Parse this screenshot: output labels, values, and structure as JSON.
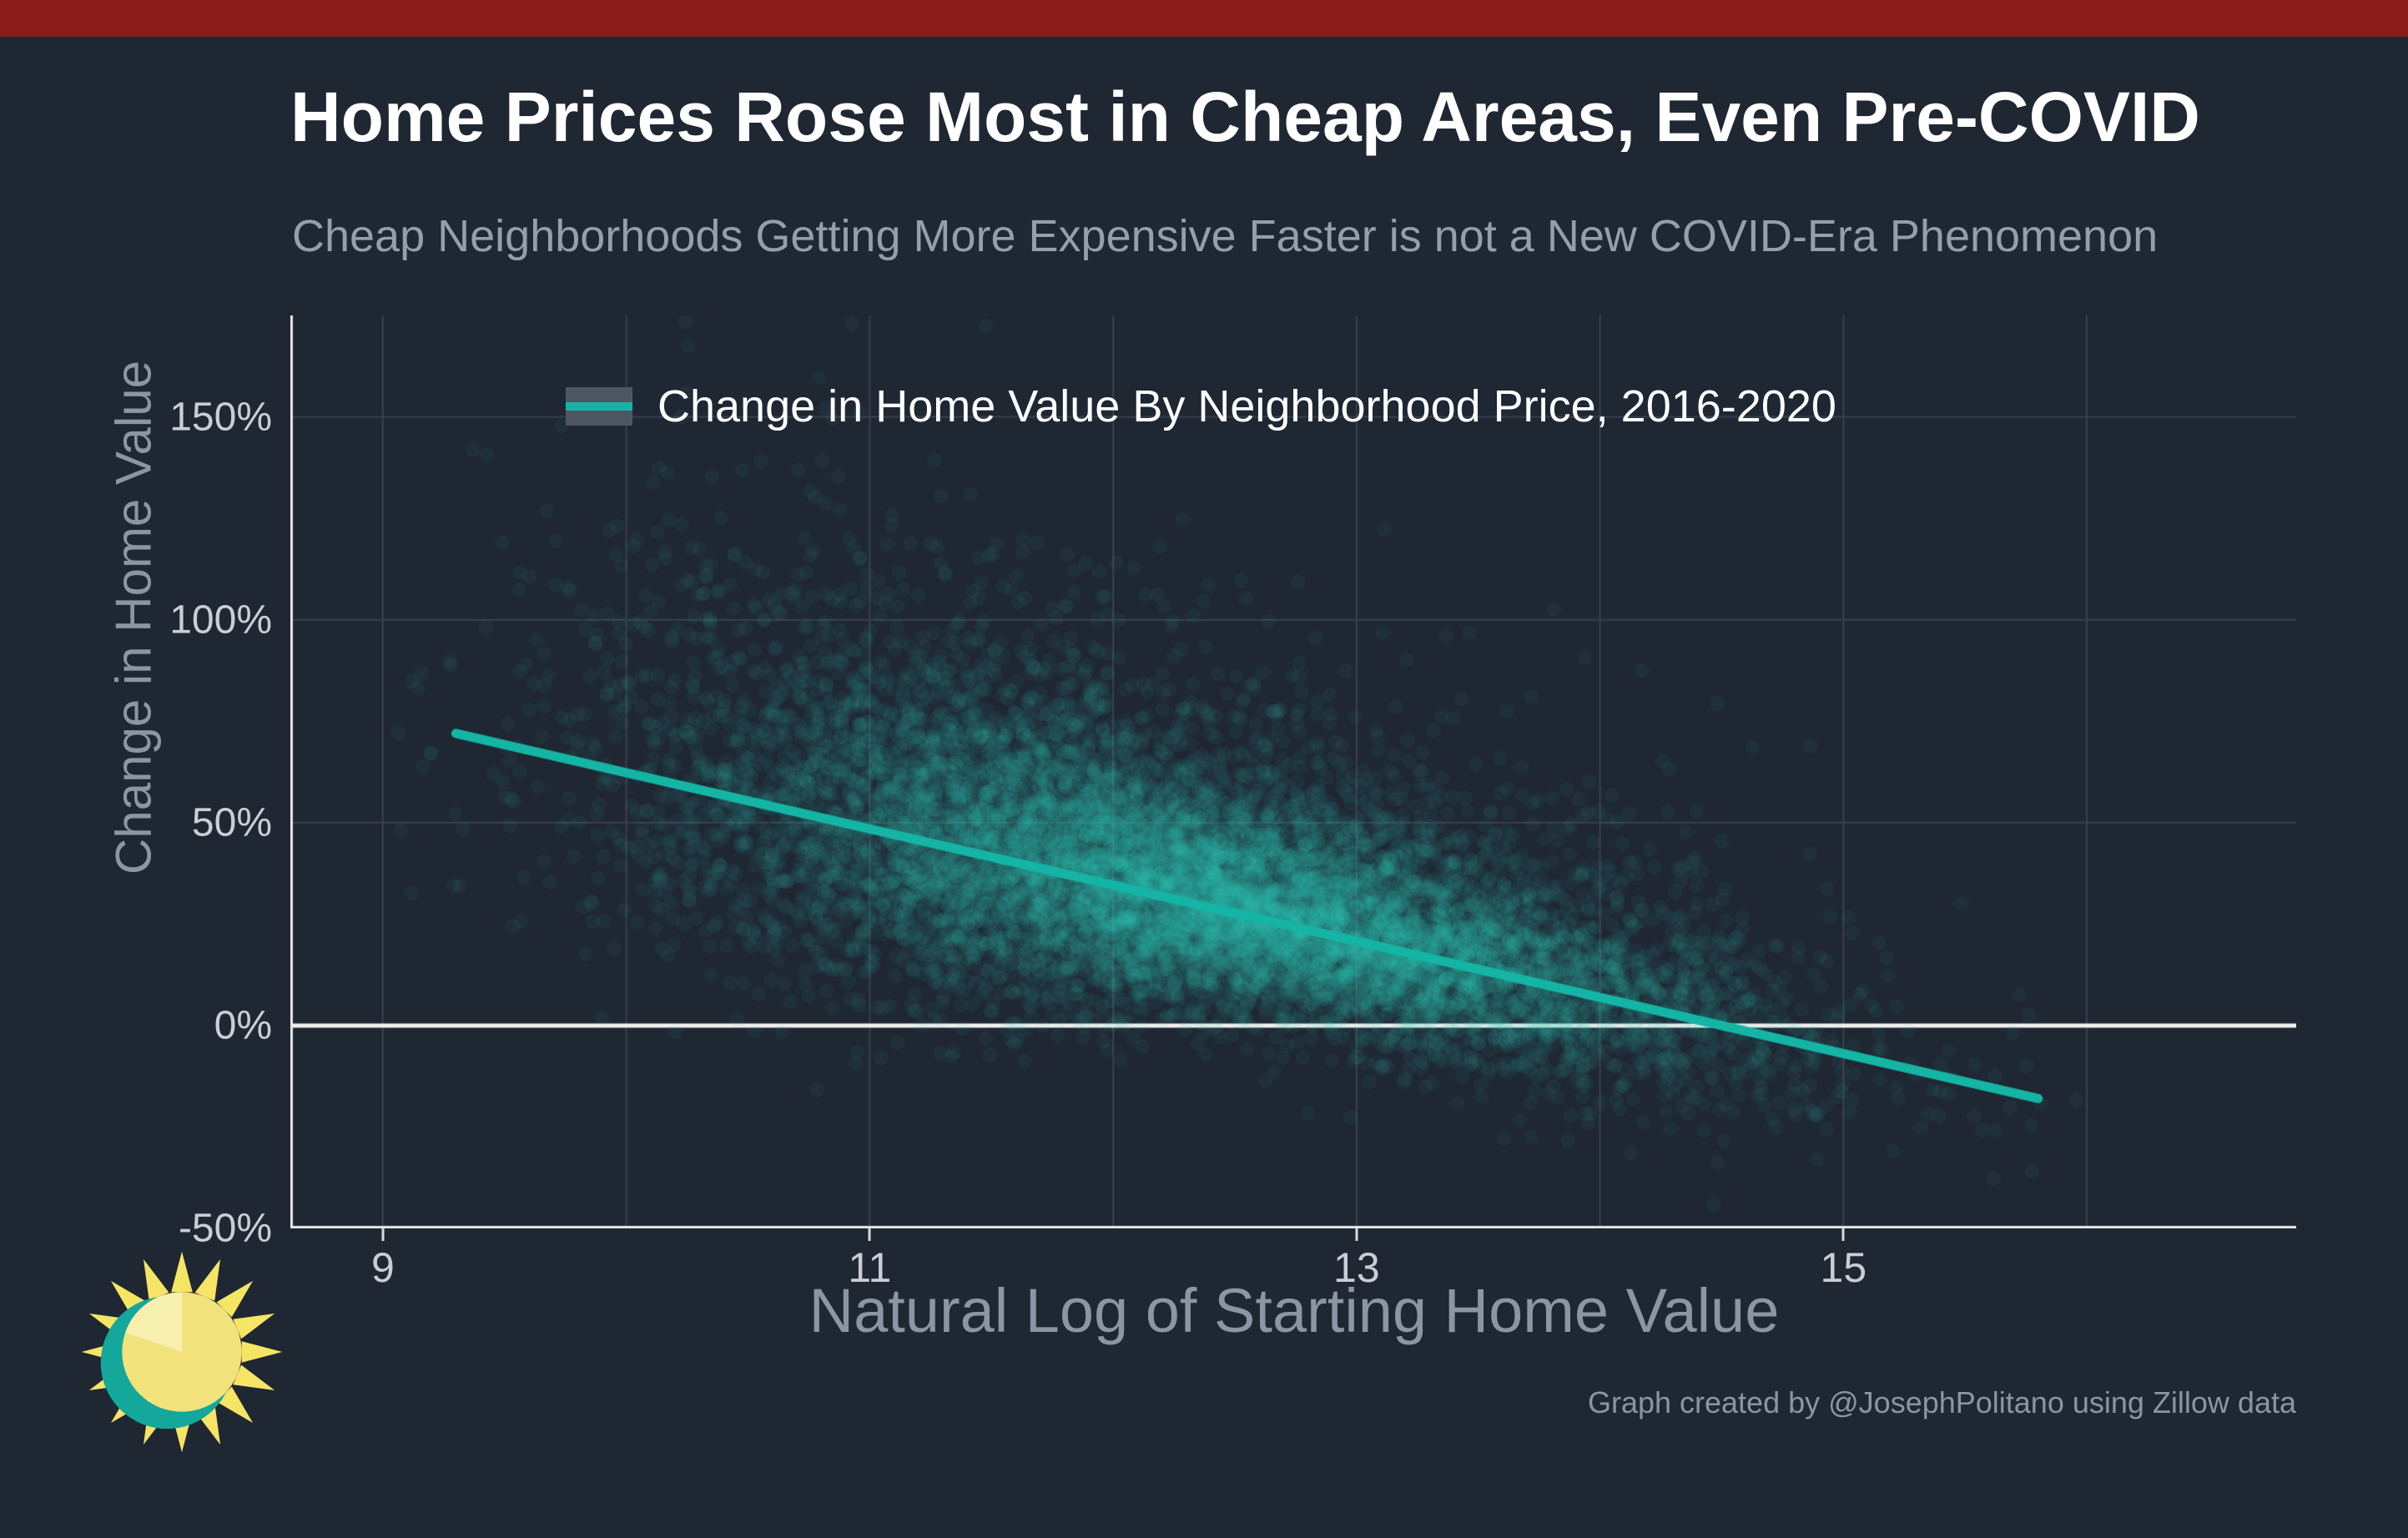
{
  "page": {
    "attribution": "Graph created by @JosephPolitano using Zillow data",
    "background": "#1f2733",
    "top_strip_color": "#8a1c1c"
  },
  "header": {
    "title": "Home Prices Rose Most in Cheap Areas, Even Pre-COVID",
    "subtitle": "Cheap Neighborhoods Getting More Expensive Faster is not a New COVID-Era Phenomenon"
  },
  "chart_data": {
    "type": "scatter",
    "title": "Change in Home Value By Neighborhood Price, 2016-2020",
    "xlabel": "Natural Log of Starting Home Value",
    "ylabel": "Change in Home Value",
    "xlim": [
      8.62,
      16.86
    ],
    "ylim": [
      -0.5,
      1.75
    ],
    "x_ticks": [
      9,
      11,
      13,
      15
    ],
    "x_gridlines": [
      9,
      10,
      11,
      12,
      13,
      14,
      15,
      16
    ],
    "y_ticks": [
      {
        "v": -0.5,
        "label": "-50%"
      },
      {
        "v": 0,
        "label": "0%"
      },
      {
        "v": 0.5,
        "label": "50%"
      },
      {
        "v": 1.0,
        "label": "100%"
      },
      {
        "v": 1.5,
        "label": "150%"
      }
    ],
    "grid_color": "#39414e",
    "axis_color": "#e6e6e6",
    "legend": {
      "label": "Change in Home Value By Neighborhood Price, 2016-2020",
      "swatch_color": "#16b3a4",
      "key_bg": "#4d5663",
      "position": "top-left-inside"
    },
    "zero_line": {
      "y": 0,
      "color": "#f2f2f2",
      "width": 5
    },
    "trend_line": {
      "x1": 9.3,
      "y1": 0.72,
      "x2": 15.8,
      "y2": -0.18,
      "color": "#14b5a5",
      "width": 11
    },
    "scatter_cloud": {
      "description": "Approx. 12,000 neighborhood-level points: % change in home value 2016-2020 vs natural log of starting home value; dense teal core along the downward fitted line (centered near x=12.3, y=+30%), upward-skewed spread widening at lower starting values, outliers up to ~170% and down to ~-45%",
      "count": 12000,
      "seed": 20162020,
      "x_mean": 12.35,
      "x_sd": 1.02,
      "x_min": 9.05,
      "x_max": 16.4,
      "trend_intercept": 2.008,
      "trend_slope": -0.1385,
      "core_sd_base": 0.12,
      "core_sd_left_gain": 0.055,
      "core_sd_ref_x": 12.5,
      "tail_prob": 0.3,
      "tail_scale_base": 0.13,
      "tail_scale_left_gain": 0.05,
      "y_min": -0.48,
      "y_max": 1.74,
      "color_rgb": "45,208,188",
      "alpha": 0.06,
      "radius": 9
    }
  },
  "logo": {
    "name": "sun-logo"
  }
}
